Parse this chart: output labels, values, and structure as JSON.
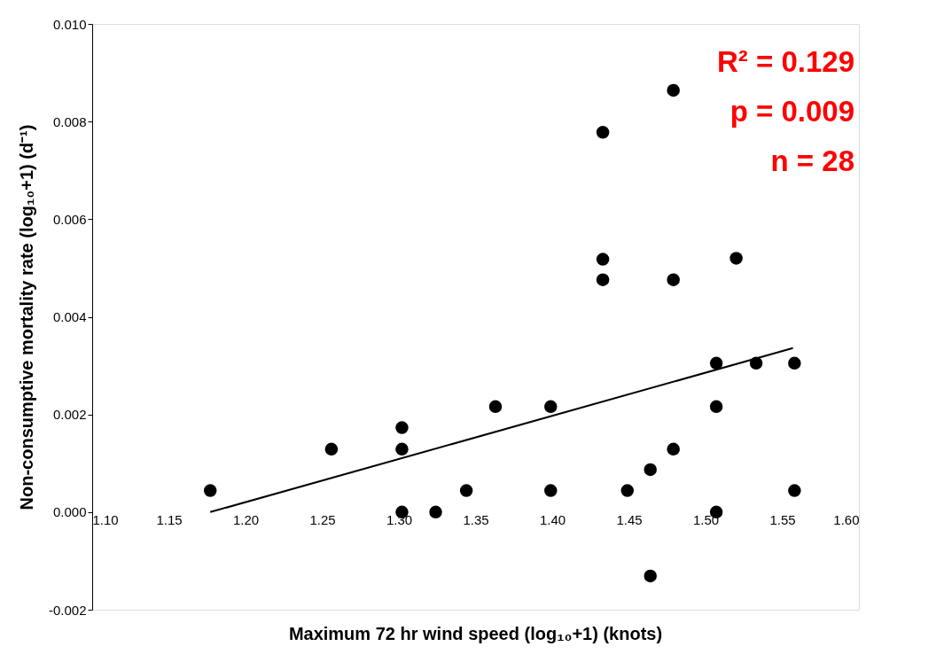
{
  "chart_data": {
    "type": "scatter",
    "xlabel": "Maximum 72 hr wind speed (log₁₀+1) (knots)",
    "ylabel": "Non-consumptive mortality rate (log₁₀+1) (d⁻¹)",
    "xlim": [
      1.1,
      1.6
    ],
    "xticks": [
      {
        "value": 1.1,
        "label": "1.10"
      },
      1.15,
      {
        "value": 1.2,
        "label": "1.20"
      },
      1.25,
      {
        "value": 1.3,
        "label": "1.30"
      },
      1.35,
      {
        "value": 1.4,
        "label": "1.40"
      },
      1.45,
      {
        "value": 1.5,
        "label": "1.50"
      },
      1.55,
      {
        "value": 1.6,
        "label": "1.60"
      }
    ],
    "ylim": [
      -0.002,
      0.01
    ],
    "yticks": [
      {
        "value": -0.002,
        "label": "-0.002"
      },
      {
        "value": 0,
        "label": "0.000"
      },
      0.002,
      0.004,
      0.006,
      0.008,
      {
        "value": 0.01,
        "label": "0.010"
      }
    ],
    "grid": false,
    "annotations": [
      "R² = 0.129",
      "p = 0.009",
      "n = 28"
    ],
    "series": [
      {
        "marker": "circle",
        "color": "#000000",
        "x": [
          1.177,
          1.256,
          1.302,
          1.302,
          1.302,
          1.324,
          1.344,
          1.363,
          1.399,
          1.399,
          1.433,
          1.433,
          1.433,
          1.449,
          1.464,
          1.464,
          1.479,
          1.479,
          1.479,
          1.507,
          1.507,
          1.507,
          1.52,
          1.533,
          1.558,
          1.558
        ],
        "values": [
          0.00044,
          0.00129,
          0.00173,
          0.00129,
          0.0,
          0.0,
          0.00044,
          0.00216,
          0.00216,
          0.00044,
          0.00778,
          0.00518,
          0.00476,
          0.00044,
          0.00087,
          -0.00131,
          0.00864,
          0.00476,
          0.00129,
          0.00305,
          0.00216,
          0.0,
          0.0052,
          0.00305,
          0.00305,
          0.00044
        ]
      },
      {
        "type": "line",
        "marker": "none",
        "color": "#000000",
        "x": [
          1.177,
          1.557
        ],
        "values": [
          0.0,
          0.00336
        ]
      }
    ]
  }
}
